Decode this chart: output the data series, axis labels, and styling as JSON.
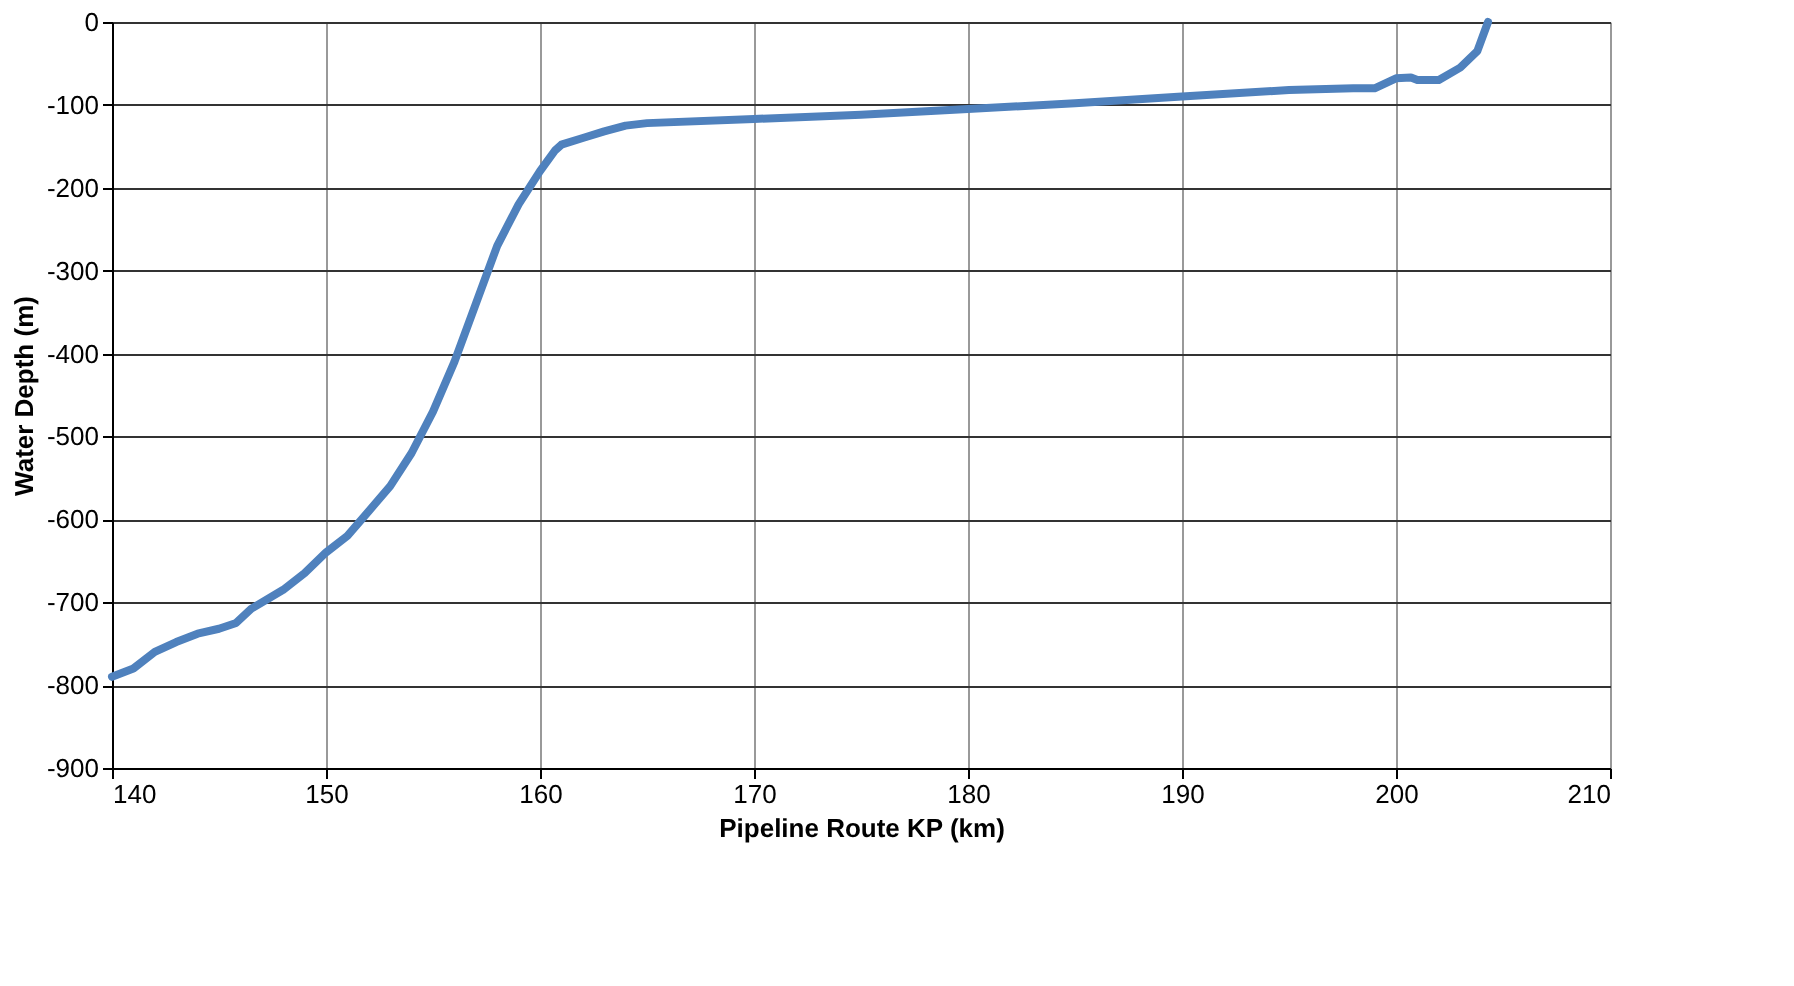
{
  "chart_data": {
    "type": "line",
    "xlabel": "Pipeline Route KP (km)",
    "ylabel": "Water Depth (m)",
    "x": [
      140,
      141,
      142,
      143,
      144,
      145,
      145.8,
      146.5,
      148,
      149,
      150,
      151,
      152,
      153,
      154,
      155,
      156,
      157,
      158,
      159,
      160,
      160.7,
      161,
      162,
      163,
      164,
      165,
      170,
      175,
      180,
      185,
      190,
      195,
      198,
      199,
      200,
      200.7,
      201,
      202,
      203,
      203.8,
      204.3
    ],
    "series": [
      {
        "color": "#4f81bd",
        "values": [
          -790,
          -780,
          -760,
          -748,
          -738,
          -732,
          -725,
          -708,
          -685,
          -665,
          -640,
          -620,
          -590,
          -560,
          -520,
          -470,
          -410,
          -340,
          -270,
          -220,
          -180,
          -155,
          -148,
          -140,
          -132,
          -125,
          -122,
          -117,
          -112,
          -105,
          -98,
          -90,
          -82,
          -80,
          -80,
          -68,
          -67,
          -70,
          -70,
          -55,
          -35,
          0
        ]
      }
    ],
    "xlim": [
      140,
      210
    ],
    "xticks": [
      140,
      150,
      160,
      170,
      180,
      190,
      200,
      210
    ],
    "ylim": [
      -900,
      0
    ],
    "yticks": [
      -900,
      -800,
      -700,
      -600,
      -500,
      -400,
      -300,
      -200,
      -100,
      0
    ],
    "grid": true,
    "marker": "none",
    "line_style": "solid"
  }
}
